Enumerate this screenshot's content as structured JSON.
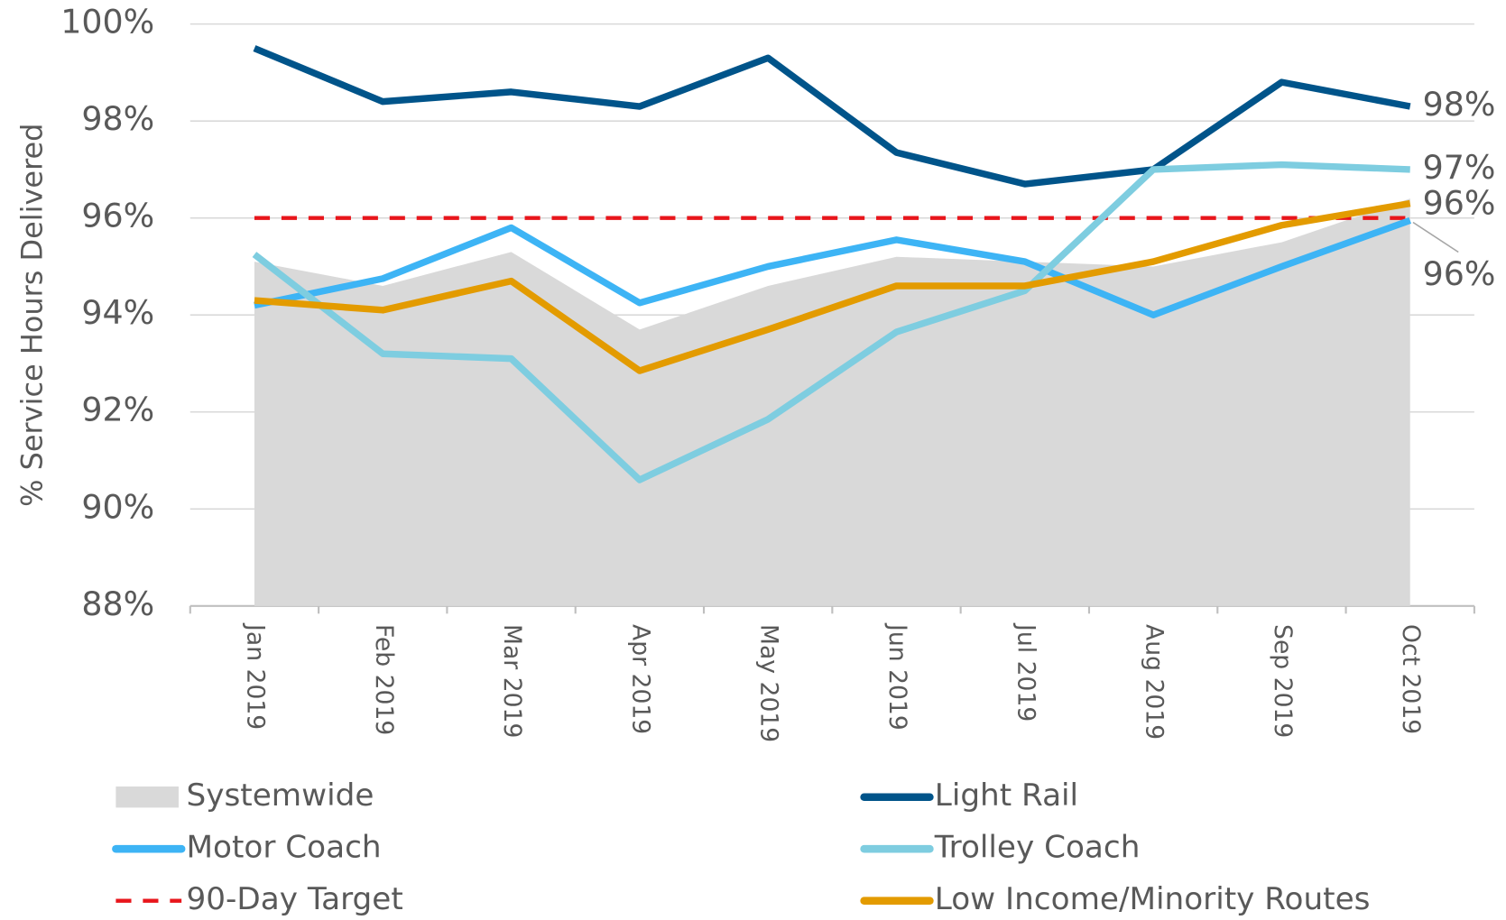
{
  "chart_data": {
    "type": "line",
    "y_label": "% Service Hours Delivered",
    "categories": [
      "Jan 2019",
      "Feb 2019",
      "Mar 2019",
      "Apr 2019",
      "May 2019",
      "Jun 2019",
      "Jul 2019",
      "Aug 2019",
      "Sep 2019",
      "Oct 2019"
    ],
    "ylim": [
      88,
      100
    ],
    "yticks": [
      {
        "value": 88,
        "label": "88%"
      },
      {
        "value": 90,
        "label": "90%"
      },
      {
        "value": 92,
        "label": "92%"
      },
      {
        "value": 94,
        "label": "94%"
      },
      {
        "value": 96,
        "label": "96%"
      },
      {
        "value": 98,
        "label": "98%"
      },
      {
        "value": 100,
        "label": "100%"
      }
    ],
    "grid": true,
    "legend": "bottom",
    "series": [
      {
        "name": "Systemwide",
        "style": "area",
        "color": "#d9d9d9",
        "values": [
          95.1,
          94.6,
          95.3,
          93.7,
          94.6,
          95.2,
          95.1,
          95.0,
          95.5,
          96.4
        ]
      },
      {
        "name": "Light Rail",
        "style": "line",
        "color": "#00548a",
        "values": [
          99.5,
          98.4,
          98.6,
          98.3,
          99.3,
          97.35,
          96.7,
          97.0,
          98.8,
          98.3
        ],
        "value_labels": [
          null,
          null,
          null,
          null,
          null,
          null,
          null,
          null,
          null,
          "98%"
        ]
      },
      {
        "name": "Motor Coach",
        "style": "line",
        "color": "#3db4f5",
        "values": [
          94.2,
          94.75,
          95.8,
          94.25,
          95.0,
          95.55,
          95.1,
          94.0,
          95.0,
          95.95
        ],
        "value_labels": [
          null,
          null,
          null,
          null,
          null,
          null,
          null,
          null,
          null,
          "96%"
        ]
      },
      {
        "name": "Trolley Coach",
        "style": "line",
        "color": "#7ecde0",
        "values": [
          95.25,
          93.2,
          93.1,
          90.6,
          91.85,
          93.65,
          94.5,
          97.0,
          97.1,
          97.0
        ],
        "value_labels": [
          null,
          null,
          null,
          null,
          null,
          null,
          null,
          null,
          null,
          "97%"
        ]
      },
      {
        "name": "90-Day Target",
        "style": "dashed",
        "color": "#e8151b",
        "values": [
          96,
          96,
          96,
          96,
          96,
          96,
          96,
          96,
          96,
          96
        ]
      },
      {
        "name": "Low Income/Minority Routes",
        "style": "line",
        "color": "#e39b00",
        "values": [
          94.3,
          94.1,
          94.7,
          92.85,
          93.7,
          94.6,
          94.6,
          95.1,
          95.85,
          96.3
        ],
        "value_labels": [
          null,
          null,
          null,
          null,
          null,
          null,
          null,
          null,
          null,
          "96%"
        ]
      }
    ]
  }
}
